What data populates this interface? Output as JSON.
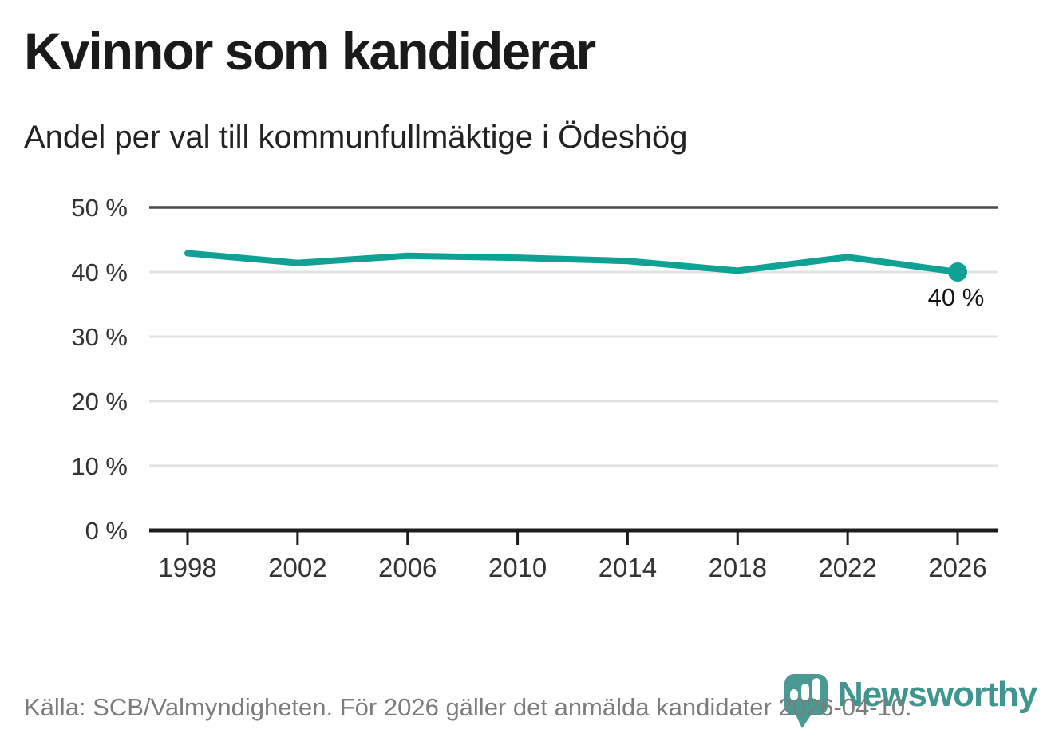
{
  "header": {
    "title": "Kvinnor som kandiderar",
    "subtitle": "Andel per val till kommunfullmäktige i Ödeshög"
  },
  "chart_data": {
    "type": "line",
    "title": "Kvinnor som kandiderar",
    "subtitle": "Andel per val till kommunfullmäktige i Ödeshög",
    "x_labels": [
      "1998",
      "2002",
      "2006",
      "2010",
      "2014",
      "2018",
      "2022",
      "2026"
    ],
    "values": [
      42.9,
      41.4,
      42.5,
      42.2,
      41.7,
      40.2,
      42.3,
      40.0
    ],
    "end_label": "40 %",
    "ylim": [
      0,
      50
    ],
    "ytick_step": 10,
    "ytick_labels": [
      "0 %",
      "10 %",
      "20 %",
      "30 %",
      "40 %",
      "50 %"
    ],
    "grid": true,
    "legend": "none"
  },
  "colors": {
    "line": "#0fa294",
    "grid_light": "#e2e2e2",
    "grid_top": "#4b4b4b",
    "axis": "#1c1c1c",
    "axis_text": "#333333",
    "label_text": "#141414",
    "muted_text": "#7c7c7c",
    "logo": "#40968e"
  },
  "footer": {
    "source": "Källa: SCB/Valmyndigheten. För 2026 gäller det anmälda kandidater 2026-04-10.",
    "logo_text": "Newsworthy"
  }
}
